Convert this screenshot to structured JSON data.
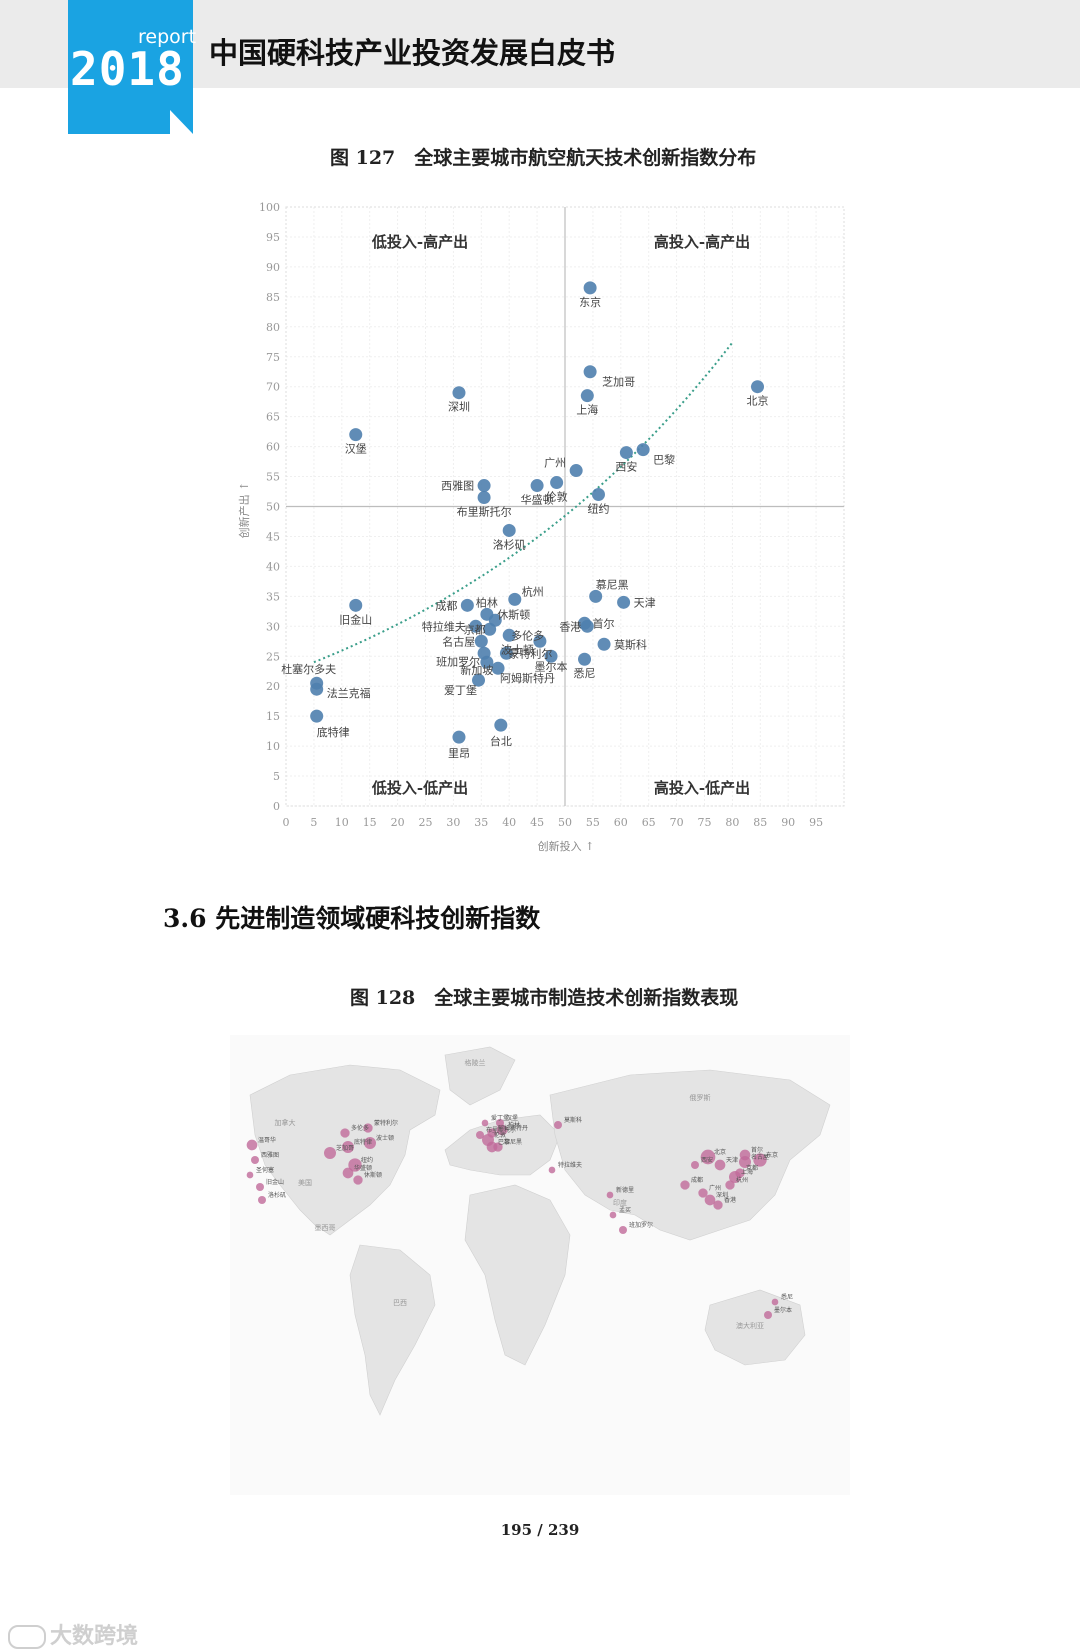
{
  "header": {
    "logo_report": "report",
    "logo_year": "2018",
    "title": "中国硬科技产业投资发展白皮书"
  },
  "figure127": {
    "title": "图 127　全球主要城市航空航天技术创新指数分布",
    "chart_data": {
      "type": "scatter",
      "xlabel": "创新投入 ↑",
      "ylabel": "创新产出 ↑",
      "xlim": [
        0,
        100
      ],
      "ylim": [
        0,
        100
      ],
      "x_ticks": [
        0,
        5,
        10,
        15,
        20,
        25,
        30,
        35,
        40,
        45,
        50,
        55,
        60,
        65,
        70,
        75,
        80,
        85,
        90,
        95
      ],
      "y_ticks": [
        0,
        5,
        10,
        15,
        20,
        25,
        30,
        35,
        40,
        45,
        50,
        55,
        60,
        65,
        70,
        75,
        80,
        85,
        90,
        95,
        100
      ],
      "reference_lines": {
        "x": 50,
        "y": 50
      },
      "quadrants": {
        "top_left": "低投入-高产出",
        "top_right": "高投入-高产出",
        "bottom_left": "低投入-低产出",
        "bottom_right": "高投入-低产出"
      },
      "trendline": "exponential",
      "points": [
        {
          "name": "东京",
          "x": 54.5,
          "y": 86.5
        },
        {
          "name": "芝加哥",
          "x": 54.5,
          "y": 72.5
        },
        {
          "name": "北京",
          "x": 84.5,
          "y": 70
        },
        {
          "name": "上海",
          "x": 54,
          "y": 68.5
        },
        {
          "name": "深圳",
          "x": 31,
          "y": 69
        },
        {
          "name": "汉堡",
          "x": 12.5,
          "y": 62
        },
        {
          "name": "巴黎",
          "x": 64,
          "y": 59.5
        },
        {
          "name": "西安",
          "x": 61,
          "y": 59
        },
        {
          "name": "广州",
          "x": 52,
          "y": 56
        },
        {
          "name": "伦敦",
          "x": 48.5,
          "y": 54
        },
        {
          "name": "华盛顿",
          "x": 45,
          "y": 53.5
        },
        {
          "name": "纽约",
          "x": 56,
          "y": 52
        },
        {
          "name": "西雅图",
          "x": 35.5,
          "y": 53.5
        },
        {
          "name": "布里斯托尔",
          "x": 35.5,
          "y": 51.5
        },
        {
          "name": "洛杉矶",
          "x": 40,
          "y": 46
        },
        {
          "name": "慕尼黑",
          "x": 55.5,
          "y": 35
        },
        {
          "name": "杭州",
          "x": 41,
          "y": 34.5
        },
        {
          "name": "天津",
          "x": 60.5,
          "y": 34
        },
        {
          "name": "旧金山",
          "x": 12.5,
          "y": 33.5
        },
        {
          "name": "成都",
          "x": 32.5,
          "y": 33.5
        },
        {
          "name": "柏林",
          "x": 36,
          "y": 32
        },
        {
          "name": "休斯顿",
          "x": 37.5,
          "y": 31
        },
        {
          "name": "特拉维夫",
          "x": 34,
          "y": 30
        },
        {
          "name": "京都",
          "x": 36.5,
          "y": 29.5
        },
        {
          "name": "多伦多",
          "x": 40,
          "y": 28.5
        },
        {
          "name": "香港",
          "x": 54,
          "y": 30
        },
        {
          "name": "首尔",
          "x": 53.5,
          "y": 30.5
        },
        {
          "name": "名古屋",
          "x": 35,
          "y": 27.5
        },
        {
          "name": "波士顿",
          "x": 45.5,
          "y": 27.5
        },
        {
          "name": "莫斯科",
          "x": 57,
          "y": 27
        },
        {
          "name": "班加罗尔",
          "x": 35.5,
          "y": 25.5
        },
        {
          "name": "蒙特利尔",
          "x": 39.5,
          "y": 25.5
        },
        {
          "name": "新加坡",
          "x": 36,
          "y": 24
        },
        {
          "name": "阿姆斯特丹",
          "x": 38,
          "y": 23
        },
        {
          "name": "墨尔本",
          "x": 47.5,
          "y": 25
        },
        {
          "name": "悉尼",
          "x": 53.5,
          "y": 24.5
        },
        {
          "name": "杜塞尔多夫",
          "x": 5.5,
          "y": 20.5
        },
        {
          "name": "法兰克福",
          "x": 5.5,
          "y": 19.5
        },
        {
          "name": "爱丁堡",
          "x": 34.5,
          "y": 21
        },
        {
          "name": "底特律",
          "x": 5.5,
          "y": 15
        },
        {
          "name": "台北",
          "x": 38.5,
          "y": 13.5
        },
        {
          "name": "里昂",
          "x": 31,
          "y": 11.5
        }
      ]
    }
  },
  "section": {
    "heading": "3.6 先进制造领域硬科技创新指数"
  },
  "figure128": {
    "title": "图 128　全球主要城市制造技术创新指数表现",
    "map_labels": {
      "regions": [
        "加拿大",
        "格陵兰",
        "俄罗斯",
        "美国",
        "墨西哥",
        "巴西",
        "澳大利亚",
        "印度"
      ],
      "cities": [
        "温哥华",
        "西雅图",
        "旧金山",
        "圣何塞",
        "洛杉矶",
        "芝加哥",
        "底特律",
        "多伦多",
        "蒙特利尔",
        "波士顿",
        "纽约",
        "华盛顿",
        "休斯顿",
        "爱丁堡",
        "伦敦",
        "布里斯托尔",
        "巴黎",
        "阿姆斯特丹",
        "柏林",
        "汉堡",
        "慕尼黑",
        "莫斯科",
        "特拉维夫",
        "新德里",
        "孟买",
        "班加罗尔",
        "北京",
        "天津",
        "西安",
        "成都",
        "上海",
        "杭州",
        "广州",
        "深圳",
        "香港",
        "首尔",
        "东京",
        "名古屋",
        "京都",
        "悉尼",
        "墨尔本"
      ]
    }
  },
  "page": {
    "number": "195 / 239"
  },
  "watermark": {
    "text": "大数跨境"
  }
}
